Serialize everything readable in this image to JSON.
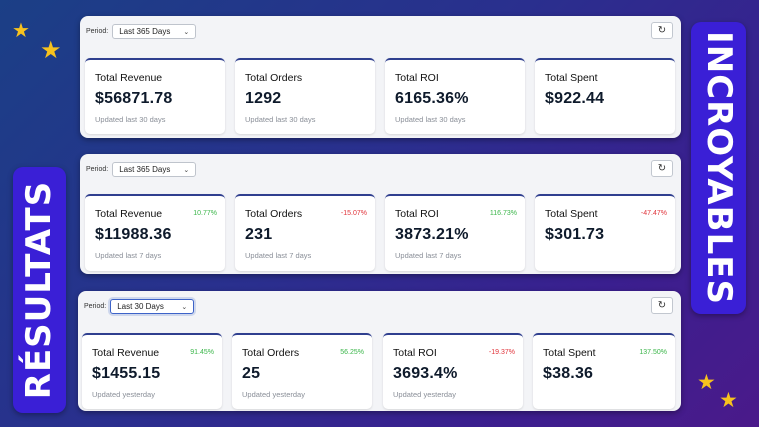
{
  "banners": {
    "right": "INCROYABLES",
    "left": "RÉSULTATS"
  },
  "colors": {
    "accent": "#2f3f8f",
    "positive": "#3bb64a",
    "negative": "#e0343b",
    "banner": "#3a1fd6",
    "star": "#f7c21e"
  },
  "icons": {
    "refresh": "refresh-icon",
    "star": "star-icon",
    "caret": "chevron-down-icon"
  },
  "panels": [
    {
      "period_label": "Period:",
      "period_value": "Last 365 Days",
      "cards": [
        {
          "title": "Total Revenue",
          "value": "$56871.78",
          "change": "",
          "sub": "Updated last 30 days"
        },
        {
          "title": "Total Orders",
          "value": "1292",
          "change": "",
          "sub": "Updated last 30 days"
        },
        {
          "title": "Total ROI",
          "value": "6165.36%",
          "change": "",
          "sub": "Updated last 30 days"
        },
        {
          "title": "Total Spent",
          "value": "$922.44",
          "change": "",
          "sub": ""
        }
      ]
    },
    {
      "period_label": "Period:",
      "period_value": "Last 365 Days",
      "cards": [
        {
          "title": "Total Revenue",
          "value": "$11988.36",
          "change": "10.77%",
          "sub": "Updated last 7 days"
        },
        {
          "title": "Total Orders",
          "value": "231",
          "change": "-15.07%",
          "sub": "Updated last 7 days"
        },
        {
          "title": "Total ROI",
          "value": "3873.21%",
          "change": "116.73%",
          "sub": "Updated last 7 days"
        },
        {
          "title": "Total Spent",
          "value": "$301.73",
          "change": "-47.47%",
          "sub": ""
        }
      ]
    },
    {
      "period_label": "Period:",
      "period_value": "Last 30 Days",
      "cards": [
        {
          "title": "Total Revenue",
          "value": "$1455.15",
          "change": "91.45%",
          "sub": "Updated yesterday"
        },
        {
          "title": "Total Orders",
          "value": "25",
          "change": "56.25%",
          "sub": "Updated yesterday"
        },
        {
          "title": "Total ROI",
          "value": "3693.4%",
          "change": "-19.37%",
          "sub": "Updated yesterday"
        },
        {
          "title": "Total Spent",
          "value": "$38.36",
          "change": "137.50%",
          "sub": ""
        }
      ]
    }
  ]
}
